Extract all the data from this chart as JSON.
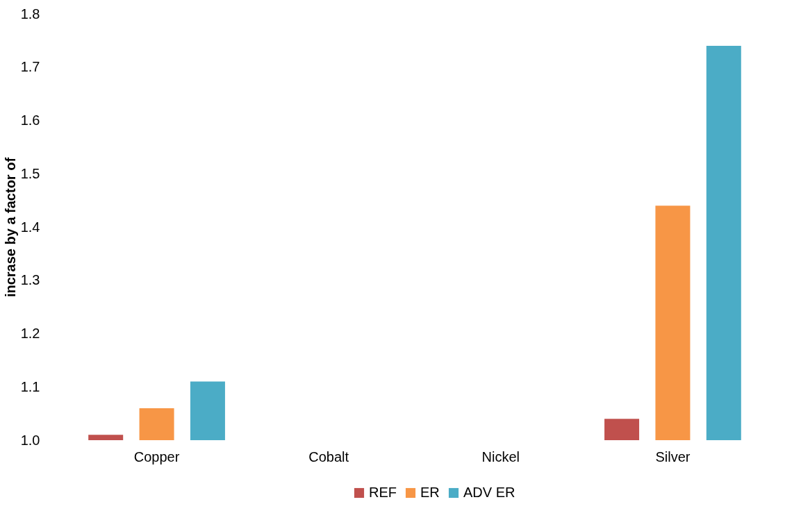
{
  "chart_data": {
    "type": "bar",
    "ylabel": "incrase by a factor of",
    "categories": [
      "Copper",
      "Cobalt",
      "Nickel",
      "Silver"
    ],
    "series": [
      {
        "name": "REF",
        "color": "#c0504d",
        "values": [
          1.01,
          null,
          null,
          1.04
        ]
      },
      {
        "name": "ER",
        "color": "#f79646",
        "values": [
          1.06,
          null,
          null,
          1.44
        ]
      },
      {
        "name": "ADV ER",
        "color": "#4bacc6",
        "values": [
          1.11,
          null,
          null,
          1.74
        ]
      }
    ],
    "ylim": [
      1.0,
      1.8
    ],
    "yticks": [
      {
        "value": 1.0,
        "label": "1.0"
      },
      1.1,
      1.2,
      1.3,
      1.4,
      1.5,
      1.6,
      1.7,
      1.8
    ],
    "grid": false,
    "legend": "bottom"
  }
}
